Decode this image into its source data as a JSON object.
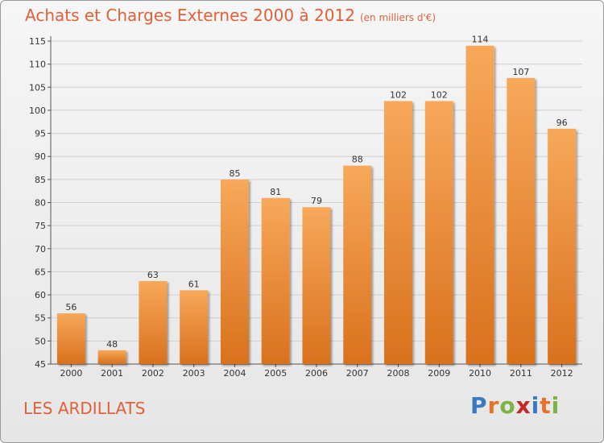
{
  "title": "Achats et Charges Externes 2000 à 2012",
  "unit_note": "(en milliers d'€)",
  "place": "LES ARDILLATS",
  "logo": {
    "text": "Proxiti",
    "colors": [
      "#3a78c2",
      "#e8712a",
      "#7cb342",
      "#c62828",
      "#3a78c2",
      "#e8712a",
      "#7cb342"
    ]
  },
  "colors": {
    "bar_top": "#f7a85a",
    "bar_bottom": "#d9711d",
    "title": "#e0603a",
    "grid": "#cfcfcf"
  },
  "chart_data": {
    "type": "bar",
    "title": "Achats et Charges Externes 2000 à 2012",
    "categories": [
      "2000",
      "2001",
      "2002",
      "2003",
      "2004",
      "2005",
      "2006",
      "2007",
      "2008",
      "2009",
      "2010",
      "2011",
      "2012"
    ],
    "values": [
      56,
      48,
      63,
      61,
      85,
      81,
      79,
      88,
      102,
      102,
      114,
      107,
      96
    ],
    "ylim": [
      45,
      115
    ],
    "yticks": [
      45,
      50,
      55,
      60,
      65,
      70,
      75,
      80,
      85,
      90,
      95,
      100,
      105,
      110,
      115
    ],
    "grid": true,
    "xlabel": "",
    "ylabel": ""
  }
}
